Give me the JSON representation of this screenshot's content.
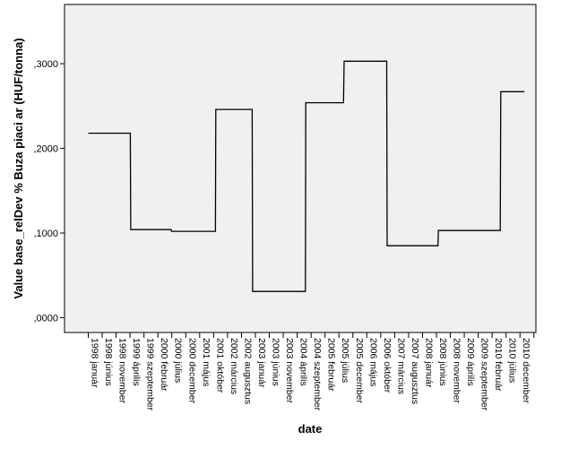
{
  "chart_data": {
    "type": "line",
    "title": "",
    "xlabel": "date",
    "ylabel": "Value base_relDev % Buza piaci ar (HUF/tonna)",
    "ylim": [
      -0.0175,
      0.37
    ],
    "yticks": [
      0.0,
      0.1,
      0.2,
      0.3
    ],
    "ytick_labels": [
      ",0000",
      ",1000",
      ",2000",
      ",3000"
    ],
    "x_labels": [
      "1998 január",
      "1998 június",
      "1998 november",
      "1999 április",
      "1999 szeptember",
      "2000 február",
      "2000 július",
      "2000 december",
      "2001 május",
      "2001 október",
      "2002 március",
      "2002 augusztus",
      "2003 január",
      "2003 június",
      "2003 november",
      "2004 április",
      "2004 szeptember",
      "2005 február",
      "2005 július",
      "2005 december",
      "2006 május",
      "2006 október",
      "2007 március",
      "2007 augusztus",
      "2008 január",
      "2008 június",
      "2008 november",
      "2009 április",
      "2009 szeptember",
      "2010 február",
      "2010 július",
      "2010 december"
    ],
    "x_tick_count": 33,
    "grid": false,
    "background_color": "#f0f0f0",
    "line_color": "#000000",
    "series": [
      {
        "x": [
          0.0,
          1.18,
          1.21,
          3.02,
          3.05,
          4.18,
          4.21,
          5.95,
          5.98,
          7.18,
          7.21,
          9.13,
          9.16,
          11.41,
          11.45,
          11.77,
          11.8,
          13.72,
          13.75,
          15.59,
          15.62,
          16.83,
          16.86,
          18.33,
          18.37,
          19.33,
          19.36,
          21.43,
          21.46,
          23.27,
          23.3,
          25.11,
          25.14,
          27.15,
          27.18,
          29.58,
          29.62,
          30.97,
          31.0,
          31.32
        ],
        "y": [
          0.218,
          0.218,
          0.218,
          0.218,
          0.104,
          0.104,
          0.104,
          0.104,
          0.102,
          0.102,
          0.102,
          0.102,
          0.246,
          0.246,
          0.246,
          0.246,
          0.031,
          0.031,
          0.031,
          0.031,
          0.254,
          0.254,
          0.254,
          0.254,
          0.303,
          0.303,
          0.303,
          0.303,
          0.085,
          0.085,
          0.085,
          0.085,
          0.103,
          0.103,
          0.103,
          0.103,
          0.267,
          0.267,
          0.267,
          0.267
        ]
      }
    ]
  }
}
